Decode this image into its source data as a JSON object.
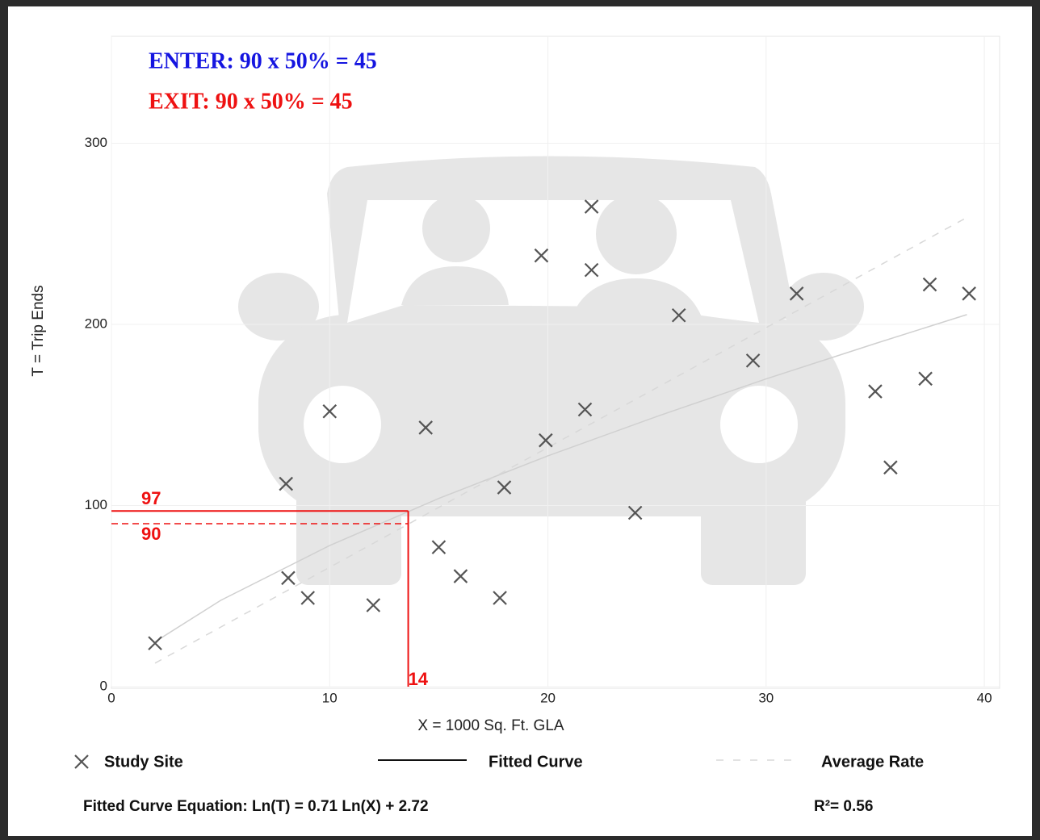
{
  "chart_data": {
    "type": "scatter",
    "annotations": {
      "enter": "ENTER: 90 x 50% = 45",
      "exit": "EXIT: 90 x 50% = 45"
    },
    "xlabel": "X = 1000 Sq. Ft. GLA",
    "ylabel": "T = Trip Ends",
    "xlim": [
      0,
      40.7
    ],
    "ylim": [
      0,
      359
    ],
    "xticks": [
      0,
      10,
      20,
      30,
      40
    ],
    "yticks": [
      0,
      100,
      200,
      300
    ],
    "grid": true,
    "series": [
      {
        "name": "Study Site",
        "color": "#555555",
        "x": [
          2,
          8,
          8.1,
          9,
          10,
          12,
          14.4,
          15,
          16,
          17.8,
          18,
          19.7,
          19.9,
          21.7,
          22,
          22,
          24,
          26,
          29.4,
          31.4,
          35,
          35.7,
          37.3,
          37.5,
          39.3
        ],
        "values": [
          24,
          112,
          60,
          49,
          152,
          45,
          143,
          77,
          61,
          49,
          110,
          238,
          136,
          153,
          265,
          230,
          96,
          205,
          180,
          217,
          163,
          121,
          170,
          222,
          217
        ]
      },
      {
        "name": "Fitted Curve",
        "color": "#d0d0d0",
        "x": [
          2,
          5,
          10,
          15,
          20,
          25,
          30,
          35,
          39.2
        ],
        "values": [
          24.8,
          47.6,
          77.9,
          103.9,
          127.4,
          149.2,
          169.9,
          189.4,
          205.4
        ]
      },
      {
        "name": "Average Rate",
        "color": "#d8d8d8",
        "x": [
          2,
          39.2
        ],
        "values": [
          13,
          259
        ]
      }
    ],
    "reference": {
      "x": 13.6,
      "x_label": "14",
      "y": 97,
      "y_label": "97",
      "y_dashed": 90,
      "y_dashed_label": "90",
      "color": "#ee1111"
    },
    "equation": "Fitted Curve Equation: Ln(T) = 0.71 Ln(X) + 2.72",
    "r_squared": "R²= 0.56"
  }
}
